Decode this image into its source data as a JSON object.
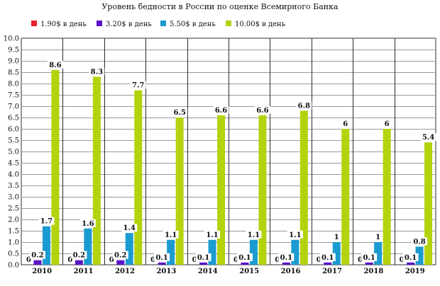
{
  "chart_data": {
    "type": "bar",
    "title": "Уровень бедности в России по оценке Всемирного Банка",
    "categories": [
      "2010",
      "2011",
      "2012",
      "2013",
      "2014",
      "2015",
      "2016",
      "2017",
      "2018",
      "2019"
    ],
    "series": [
      {
        "name": "1.90$ в день",
        "color": "#e8202a",
        "values": [
          0,
          0,
          0,
          0,
          0,
          0,
          0,
          0,
          0,
          0
        ]
      },
      {
        "name": "3.20$ в день",
        "color": "#5b12c8",
        "values": [
          0.2,
          0.2,
          0.2,
          0.1,
          0.1,
          0.1,
          0.1,
          0.1,
          0.1,
          0.1
        ]
      },
      {
        "name": "5.50$ в день",
        "color": "#1b9bd0",
        "values": [
          1.7,
          1.6,
          1.4,
          1.1,
          1.1,
          1.1,
          1.1,
          1,
          1,
          0.8
        ]
      },
      {
        "name": "10.00$ в день",
        "color": "#b5d20e",
        "values": [
          8.6,
          8.3,
          7.7,
          6.5,
          6.6,
          6.6,
          6.8,
          6,
          6,
          5.4
        ]
      }
    ],
    "data_labels": [
      [
        "0",
        "0",
        "0",
        "0",
        "0",
        "0",
        "0",
        "0",
        "0",
        "0"
      ],
      [
        "0.2",
        "0.2",
        "0.2",
        "0.1",
        "0.1",
        "0.1",
        "0.1",
        "0.1",
        "0.1",
        "0.1"
      ],
      [
        "1.7",
        "1.6",
        "1.4",
        "1.1",
        "1.1",
        "1.1",
        "1.1",
        "1",
        "1",
        "0.8"
      ],
      [
        "8.6",
        "8.3",
        "7.7",
        "6.5",
        "6.6",
        "6.6",
        "6.8",
        "6",
        "6",
        "5.4"
      ]
    ],
    "y_ticks": [
      "0.0",
      "0.5",
      "1.0",
      "1.5",
      "2.0",
      "2.5",
      "3.0",
      "3.5",
      "4.0",
      "4.5",
      "5.0",
      "5.5",
      "6.0",
      "6.5",
      "7.0",
      "7.5",
      "8.0",
      "8.5",
      "9.0",
      "9.5",
      "10.0"
    ],
    "ylim": [
      0,
      10
    ],
    "grid": true,
    "legend_position": "top"
  }
}
